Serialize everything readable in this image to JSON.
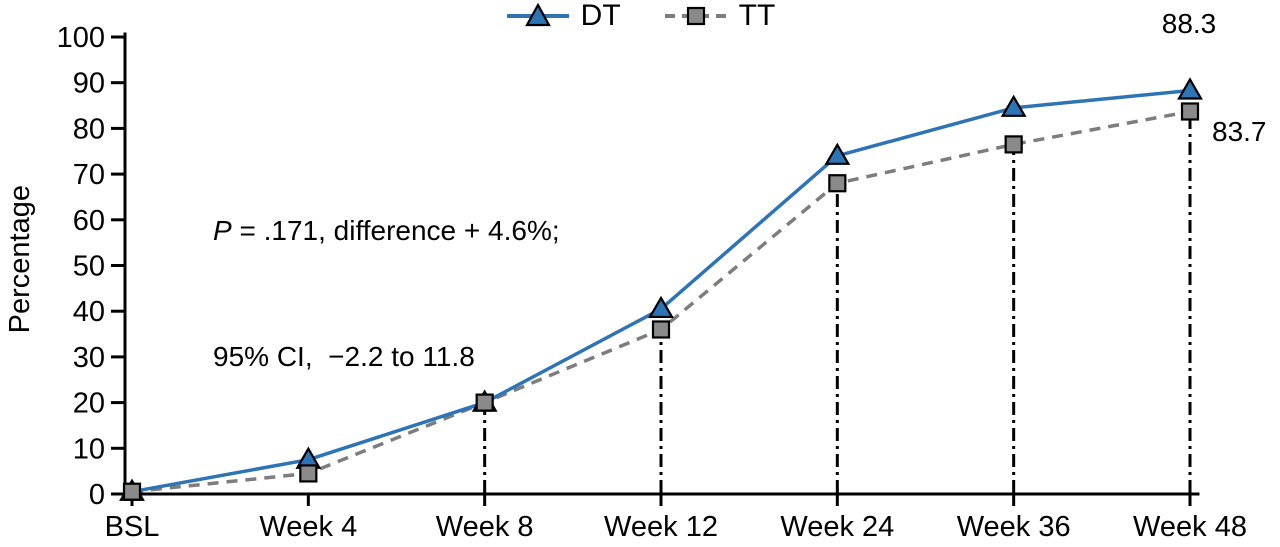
{
  "chart_data": {
    "type": "line",
    "x_categories": [
      "BSL",
      "Week 4",
      "Week 8",
      "Week 12",
      "Week 24",
      "Week 36",
      "Week 48"
    ],
    "series": [
      {
        "name": "DT",
        "values": [
          0.5,
          7.5,
          20,
          40.5,
          74,
          84.5,
          88.3
        ],
        "color": "#2e74b5",
        "marker": "triangle",
        "line_style": "solid"
      },
      {
        "name": "TT",
        "values": [
          0.5,
          4.5,
          20,
          36,
          68,
          76.5,
          83.7
        ],
        "color": "#7d7d7d",
        "marker": "square",
        "marker_fill": "#8a8a8a",
        "line_style": "dashed"
      }
    ],
    "ylabel": "Percentage",
    "xlabel": "",
    "ylim": [
      0,
      100
    ],
    "ytick_step": 10,
    "grid": false,
    "legend_position": "top-center",
    "dropline_categories": [
      "Week 8",
      "Week 12",
      "Week 24",
      "Week 36",
      "Week 48"
    ],
    "end_labels": {
      "DT": "88.3",
      "TT": "83.7"
    },
    "axis_color": "#000000"
  },
  "annotation": {
    "p": "P",
    "line1_rest": " = .171, difference + 4.6%;",
    "line2": "95% CI,  −2.2 to 11.8"
  }
}
